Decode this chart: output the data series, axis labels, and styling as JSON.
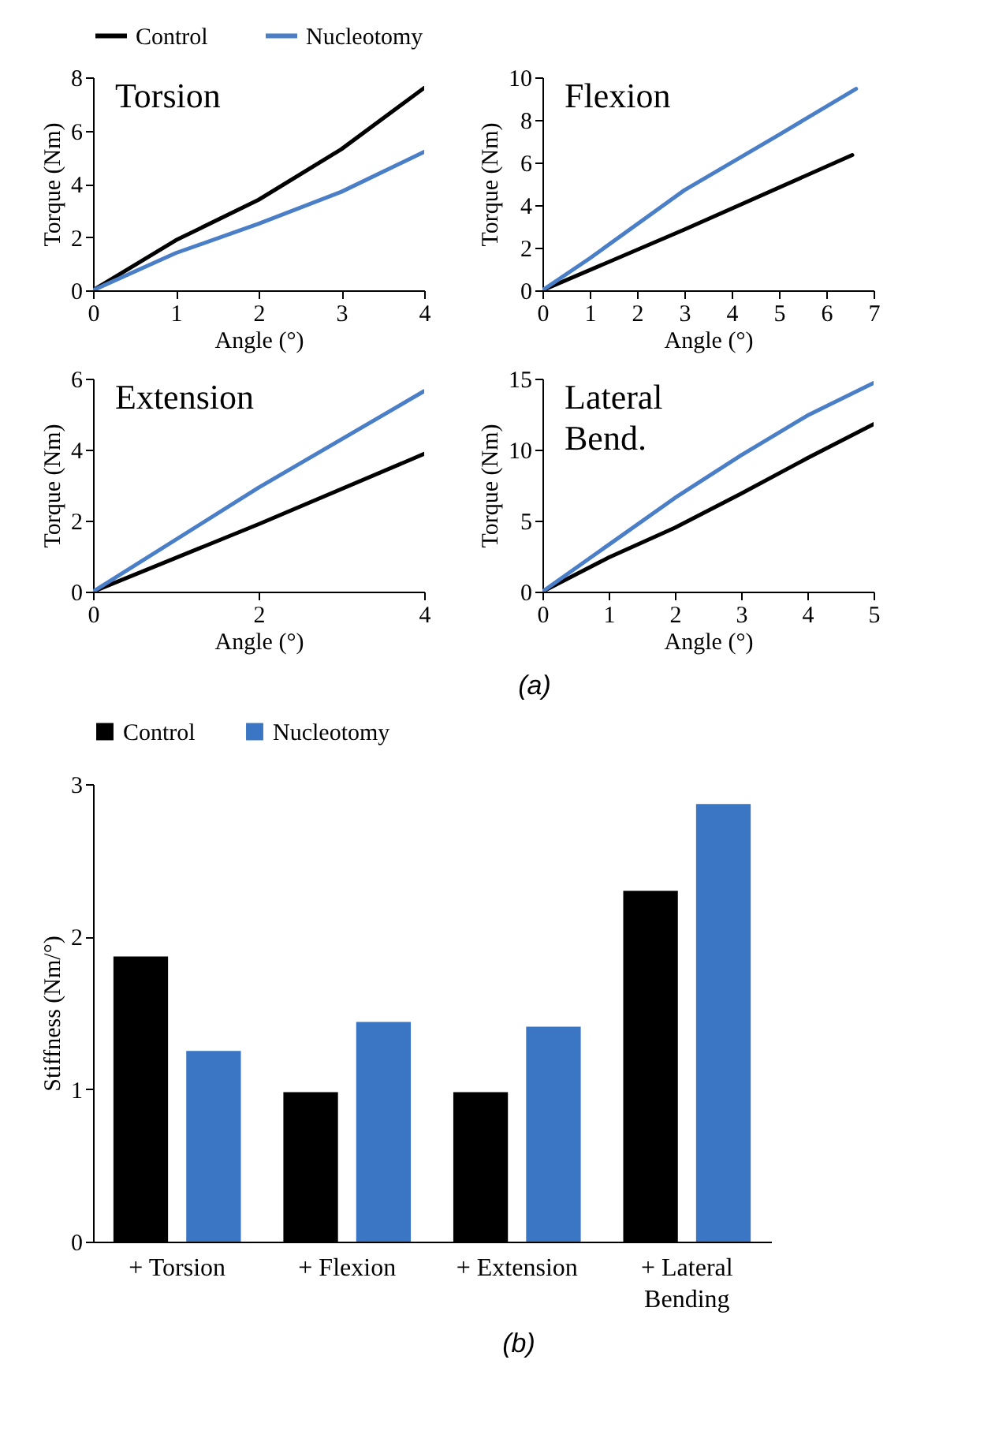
{
  "chart_data": [
    {
      "type": "line",
      "title": "Torsion",
      "xlabel": "Angle (°)",
      "ylabel": "Torque (Nm)",
      "xlim": [
        0,
        4
      ],
      "xticks": [
        0,
        1,
        2,
        3,
        4
      ],
      "ylim": [
        0,
        8
      ],
      "yticks": [
        0,
        2,
        4,
        6,
        8
      ],
      "legend": "top",
      "x": [
        0,
        1,
        2,
        3,
        4
      ],
      "series": [
        {
          "name": "Control",
          "color": "#000000",
          "values": [
            0,
            1.88,
            3.4,
            5.3,
            7.6
          ]
        },
        {
          "name": "Nucleotomy",
          "color": "#4a7fc8",
          "values": [
            0,
            1.4,
            2.5,
            3.7,
            5.2
          ]
        }
      ]
    },
    {
      "type": "line",
      "title": "Flexion",
      "xlabel": "Angle (°)",
      "ylabel": "Torque (Nm)",
      "xlim": [
        0,
        7
      ],
      "xticks": [
        0,
        1,
        2,
        3,
        4,
        5,
        6,
        7
      ],
      "ylim": [
        0,
        10
      ],
      "yticks": [
        0,
        2,
        4,
        6,
        8,
        10
      ],
      "series": [
        {
          "color": "#000000",
          "x": [
            0,
            3,
            6.55
          ],
          "values": [
            0,
            2.85,
            6.35
          ]
        },
        {
          "color": "#4a7fc8",
          "x": [
            0,
            1,
            3,
            5,
            6.63
          ],
          "values": [
            0,
            1.5,
            4.7,
            7.3,
            9.46
          ]
        }
      ]
    },
    {
      "type": "line",
      "title": "Extension",
      "xlabel": "Angle (°)",
      "ylabel": "Torque (Nm)",
      "xlim": [
        0,
        4
      ],
      "xticks": [
        0,
        2,
        4
      ],
      "ylim": [
        0,
        6
      ],
      "yticks": [
        0,
        2,
        4,
        6
      ],
      "annotations": [
        "(a)"
      ],
      "x": [
        0,
        2,
        4
      ],
      "series": [
        {
          "color": "#000000",
          "values": [
            0,
            1.9,
            3.88
          ]
        },
        {
          "color": "#4a7fc8",
          "values": [
            0,
            2.93,
            5.65
          ]
        }
      ]
    },
    {
      "type": "line",
      "title": "Lateral Bend.",
      "xlabel": "Angle (°)",
      "ylabel": "Torque (Nm)",
      "xlim": [
        0,
        5
      ],
      "xticks": [
        0,
        1,
        2,
        3,
        4,
        5
      ],
      "ylim": [
        0,
        15
      ],
      "yticks": [
        0,
        5,
        10,
        15
      ],
      "x": [
        0,
        1,
        2,
        3,
        4,
        5
      ],
      "series": [
        {
          "color": "#000000",
          "values": [
            0,
            2.4,
            4.5,
            6.9,
            9.4,
            11.8
          ]
        },
        {
          "color": "#4a7fc8",
          "values": [
            0,
            3.3,
            6.6,
            9.6,
            12.4,
            14.7
          ]
        }
      ]
    },
    {
      "type": "bar",
      "ylabel": "Stiffness (Nm/°)",
      "ylim": [
        0,
        3
      ],
      "yticks": [
        0,
        1,
        2,
        3
      ],
      "legend": "top",
      "annotations": [
        "(b)"
      ],
      "categories": [
        "+ Torsion",
        "+ Flexion",
        "+ Extension",
        "+ Lateral Bending"
      ],
      "series": [
        {
          "name": "Control",
          "color": "#000000",
          "values": [
            1.87,
            0.98,
            0.98,
            2.3
          ]
        },
        {
          "name": "Nucleotomy",
          "color": "#3b76c4",
          "values": [
            1.25,
            1.44,
            1.41,
            2.87
          ]
        }
      ]
    }
  ]
}
